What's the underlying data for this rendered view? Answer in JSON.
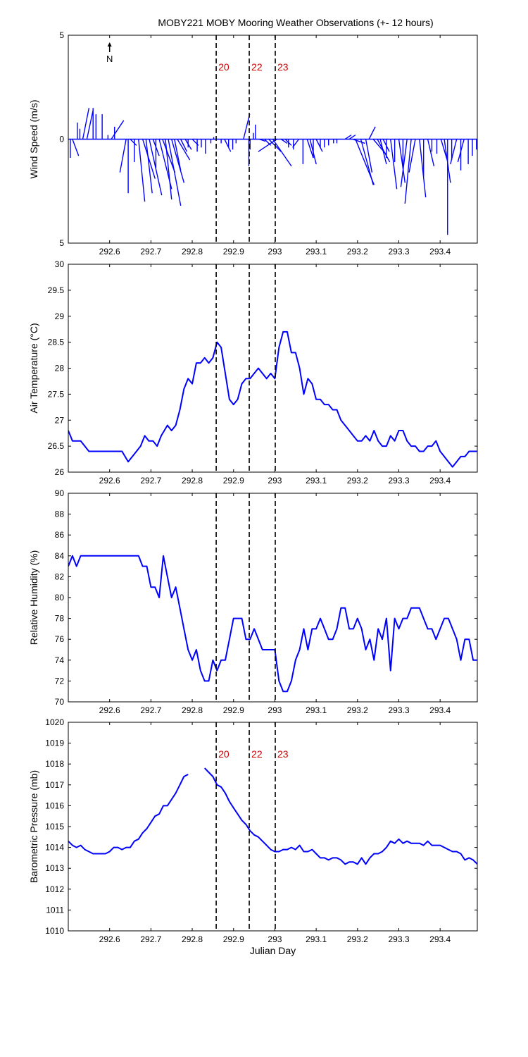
{
  "title": "MOBY221 MOBY Mooring Weather Observations (+- 12 hours)",
  "colors": {
    "series": "#0000ff",
    "marker_label": "#cc0000",
    "axes": "#000000"
  },
  "north_label": "N",
  "vlines": [
    {
      "x": 292.858,
      "label": "20"
    },
    {
      "x": 292.938,
      "label": "22"
    },
    {
      "x": 293.001,
      "label": "23"
    }
  ],
  "chart_data": [
    {
      "type": "line",
      "subtype": "wind-vector-stick",
      "xlabel": "Julian Day",
      "ylabel": "Wind Speed (m/s)",
      "xlim": [
        292.5,
        293.49
      ],
      "ylim": [
        -5,
        5
      ],
      "yticks": [
        5,
        0,
        5
      ],
      "xticks": [
        292.6,
        292.7,
        292.8,
        292.9,
        293,
        293.1,
        293.2,
        293.3,
        293.4
      ],
      "show_marker_labels": true,
      "sticks": [
        {
          "x": 292.505,
          "u": 0.0,
          "v": -0.9
        },
        {
          "x": 292.51,
          "u": 0.1,
          "v": -0.8
        },
        {
          "x": 292.522,
          "u": 0.0,
          "v": 0.8
        },
        {
          "x": 292.528,
          "u": 0.0,
          "v": 0.5
        },
        {
          "x": 292.535,
          "u": 0.1,
          "v": 1.5
        },
        {
          "x": 292.545,
          "u": 0.1,
          "v": 1.4
        },
        {
          "x": 292.56,
          "u": 0.0,
          "v": 1.5
        },
        {
          "x": 292.567,
          "u": 0.0,
          "v": 1.2
        },
        {
          "x": 292.582,
          "u": 0.0,
          "v": 1.2
        },
        {
          "x": 292.596,
          "u": 0.0,
          "v": 0.2
        },
        {
          "x": 292.604,
          "u": 0.2,
          "v": 0.9
        },
        {
          "x": 292.612,
          "u": 0.0,
          "v": 0.6
        },
        {
          "x": 292.64,
          "u": -0.1,
          "v": -1.6
        },
        {
          "x": 292.645,
          "u": 0.0,
          "v": -2.6
        },
        {
          "x": 292.65,
          "u": 0.1,
          "v": -0.3
        },
        {
          "x": 292.66,
          "u": 0.0,
          "v": -1.1
        },
        {
          "x": 292.67,
          "u": 0.1,
          "v": -3.0
        },
        {
          "x": 292.68,
          "u": 0.2,
          "v": -1.9
        },
        {
          "x": 292.688,
          "u": 0.1,
          "v": -2.6
        },
        {
          "x": 292.696,
          "u": 0.2,
          "v": -2.7
        },
        {
          "x": 292.705,
          "u": 0.1,
          "v": -0.8
        },
        {
          "x": 292.712,
          "u": 0.0,
          "v": -1.4
        },
        {
          "x": 292.72,
          "u": 0.2,
          "v": -2.4
        },
        {
          "x": 292.728,
          "u": 0.2,
          "v": -1.6
        },
        {
          "x": 292.735,
          "u": 0.1,
          "v": -2.9
        },
        {
          "x": 292.742,
          "u": 0.2,
          "v": -3.2
        },
        {
          "x": 292.75,
          "u": 0.2,
          "v": -2.1
        },
        {
          "x": 292.757,
          "u": 0.1,
          "v": -1.5
        },
        {
          "x": 292.764,
          "u": 0.2,
          "v": -1.0
        },
        {
          "x": 292.772,
          "u": 0.1,
          "v": -0.6
        },
        {
          "x": 292.783,
          "u": 0.1,
          "v": -0.5
        },
        {
          "x": 292.79,
          "u": 0.0,
          "v": -0.4
        },
        {
          "x": 292.8,
          "u": 0.1,
          "v": -0.3
        },
        {
          "x": 292.812,
          "u": 0.0,
          "v": -0.6
        },
        {
          "x": 292.822,
          "u": 0.0,
          "v": -0.4
        },
        {
          "x": 292.832,
          "u": 0.0,
          "v": -0.7
        },
        {
          "x": 292.845,
          "u": 0.0,
          "v": -0.2
        },
        {
          "x": 292.852,
          "u": 0.0,
          "v": 0.1
        },
        {
          "x": 292.87,
          "u": 0.0,
          "v": -0.2
        },
        {
          "x": 292.878,
          "u": 0.1,
          "v": -0.6
        },
        {
          "x": 292.888,
          "u": 0.0,
          "v": -0.4
        },
        {
          "x": 292.898,
          "u": 0.0,
          "v": -0.5
        },
        {
          "x": 292.906,
          "u": 0.0,
          "v": -0.2
        },
        {
          "x": 292.924,
          "u": 0.1,
          "v": 1.2
        },
        {
          "x": 292.937,
          "u": 0.0,
          "v": -1.3
        },
        {
          "x": 292.94,
          "u": 0.0,
          "v": -0.5
        },
        {
          "x": 292.948,
          "u": 0.0,
          "v": 0.3
        },
        {
          "x": 292.953,
          "u": 0.0,
          "v": 0.7
        },
        {
          "x": 292.962,
          "u": 0.1,
          "v": -0.1
        },
        {
          "x": 292.975,
          "u": 0.1,
          "v": -0.3
        },
        {
          "x": 292.985,
          "u": 0.2,
          "v": -0.6
        },
        {
          "x": 292.995,
          "u": 0.3,
          "v": -1.3
        },
        {
          "x": 293.005,
          "u": -0.3,
          "v": -0.6
        },
        {
          "x": 293.015,
          "u": 0.1,
          "v": -0.2
        },
        {
          "x": 293.025,
          "u": 0.1,
          "v": -0.3
        },
        {
          "x": 293.033,
          "u": 0.0,
          "v": -0.4
        },
        {
          "x": 293.045,
          "u": 0.0,
          "v": -0.5
        },
        {
          "x": 293.058,
          "u": -0.1,
          "v": -0.4
        },
        {
          "x": 293.068,
          "u": 0.0,
          "v": -1.2
        },
        {
          "x": 293.078,
          "u": 0.1,
          "v": -0.9
        },
        {
          "x": 293.085,
          "u": 0.1,
          "v": -1.2
        },
        {
          "x": 293.093,
          "u": 0.0,
          "v": -0.9
        },
        {
          "x": 293.1,
          "u": 0.1,
          "v": -0.6
        },
        {
          "x": 293.11,
          "u": 0.0,
          "v": -0.4
        },
        {
          "x": 293.12,
          "u": 0.0,
          "v": -0.4
        },
        {
          "x": 293.13,
          "u": 0.0,
          "v": -0.3
        },
        {
          "x": 293.142,
          "u": 0.0,
          "v": -0.2
        },
        {
          "x": 293.15,
          "u": 0.0,
          "v": -0.2
        },
        {
          "x": 293.17,
          "u": 0.1,
          "v": 0.2
        },
        {
          "x": 293.18,
          "u": 0.1,
          "v": 0.2
        },
        {
          "x": 293.188,
          "u": 0.2,
          "v": -0.2
        },
        {
          "x": 293.195,
          "u": 0.3,
          "v": -2.2
        },
        {
          "x": 293.208,
          "u": 0.2,
          "v": -2.2
        },
        {
          "x": 293.22,
          "u": 0.1,
          "v": -1.6
        },
        {
          "x": 293.228,
          "u": 0.1,
          "v": 0.6
        },
        {
          "x": 293.238,
          "u": 0.2,
          "v": -0.7
        },
        {
          "x": 293.248,
          "u": 0.2,
          "v": -1.1
        },
        {
          "x": 293.255,
          "u": 0.1,
          "v": -1.2
        },
        {
          "x": 293.262,
          "u": 0.1,
          "v": -0.6
        },
        {
          "x": 293.27,
          "u": 0.0,
          "v": -0.9
        },
        {
          "x": 293.28,
          "u": 0.1,
          "v": -2.4
        },
        {
          "x": 293.29,
          "u": 0.0,
          "v": -1.1
        },
        {
          "x": 293.3,
          "u": 0.1,
          "v": -2.1
        },
        {
          "x": 293.31,
          "u": 0.0,
          "v": -1.4
        },
        {
          "x": 293.32,
          "u": -0.1,
          "v": -2.3
        },
        {
          "x": 293.33,
          "u": -0.1,
          "v": -3.1
        },
        {
          "x": 293.34,
          "u": -0.1,
          "v": -1.6
        },
        {
          "x": 293.35,
          "u": 0.1,
          "v": -2.8
        },
        {
          "x": 293.36,
          "u": 0.0,
          "v": -1.8
        },
        {
          "x": 293.37,
          "u": 0.1,
          "v": -1.3
        },
        {
          "x": 293.38,
          "u": 0.0,
          "v": -0.6
        },
        {
          "x": 293.392,
          "u": 0.0,
          "v": -0.7
        },
        {
          "x": 293.402,
          "u": 0.1,
          "v": -1.0
        },
        {
          "x": 293.41,
          "u": 0.1,
          "v": -2.1
        },
        {
          "x": 293.418,
          "u": 0.0,
          "v": -4.6
        },
        {
          "x": 293.428,
          "u": 0.0,
          "v": -1.0
        },
        {
          "x": 293.44,
          "u": -0.1,
          "v": -1.2
        },
        {
          "x": 293.45,
          "u": 0.0,
          "v": -1.5
        },
        {
          "x": 293.458,
          "u": -0.1,
          "v": -1.1
        },
        {
          "x": 293.468,
          "u": 0.0,
          "v": -1.2
        },
        {
          "x": 293.478,
          "u": 0.0,
          "v": -0.8
        },
        {
          "x": 293.488,
          "u": 0.0,
          "v": -0.5
        }
      ]
    },
    {
      "type": "line",
      "xlabel": "",
      "ylabel": "Air Temperature (°C)",
      "xlim": [
        292.5,
        293.49
      ],
      "ylim": [
        26,
        30
      ],
      "yticks": [
        26,
        26.5,
        27,
        27.5,
        28,
        28.5,
        29,
        29.5,
        30
      ],
      "xticks": [
        292.6,
        292.7,
        292.8,
        292.9,
        293,
        293.1,
        293.2,
        293.3,
        293.4
      ],
      "show_marker_labels": false,
      "x": [
        292.5,
        292.51,
        292.52,
        292.53,
        292.55,
        292.6,
        292.63,
        292.645,
        292.66,
        292.675,
        292.685,
        292.695,
        292.705,
        292.715,
        292.725,
        292.74,
        292.75,
        292.76,
        292.77,
        292.78,
        292.79,
        292.8,
        292.81,
        292.82,
        292.83,
        292.84,
        292.85,
        292.86,
        292.87,
        292.88,
        292.89,
        292.9,
        292.91,
        292.92,
        292.93,
        292.94,
        292.95,
        292.96,
        292.97,
        292.98,
        292.99,
        293.0,
        293.01,
        293.02,
        293.03,
        293.04,
        293.05,
        293.06,
        293.07,
        293.08,
        293.09,
        293.1,
        293.11,
        293.12,
        293.13,
        293.14,
        293.15,
        293.16,
        293.17,
        293.18,
        293.19,
        293.2,
        293.21,
        293.22,
        293.23,
        293.24,
        293.25,
        293.26,
        293.27,
        293.28,
        293.29,
        293.3,
        293.31,
        293.32,
        293.33,
        293.34,
        293.35,
        293.36,
        293.37,
        293.38,
        293.39,
        293.4,
        293.41,
        293.42,
        293.43,
        293.44,
        293.45,
        293.46,
        293.47,
        293.48,
        293.49
      ],
      "y": [
        26.8,
        26.6,
        26.6,
        26.6,
        26.4,
        26.4,
        26.4,
        26.2,
        26.35,
        26.5,
        26.7,
        26.6,
        26.6,
        26.5,
        26.7,
        26.9,
        26.8,
        26.9,
        27.2,
        27.6,
        27.8,
        27.7,
        28.1,
        28.1,
        28.2,
        28.1,
        28.2,
        28.5,
        28.4,
        27.9,
        27.4,
        27.3,
        27.4,
        27.7,
        27.8,
        27.8,
        27.9,
        28.0,
        27.9,
        27.8,
        27.9,
        27.8,
        28.4,
        28.7,
        28.7,
        28.3,
        28.3,
        28.0,
        27.5,
        27.8,
        27.7,
        27.4,
        27.4,
        27.3,
        27.3,
        27.2,
        27.2,
        27.0,
        26.9,
        26.8,
        26.7,
        26.6,
        26.6,
        26.7,
        26.6,
        26.8,
        26.6,
        26.5,
        26.5,
        26.7,
        26.6,
        26.8,
        26.8,
        26.6,
        26.5,
        26.5,
        26.4,
        26.4,
        26.5,
        26.5,
        26.6,
        26.4,
        26.3,
        26.2,
        26.1,
        26.2,
        26.3,
        26.3,
        26.4,
        26.4,
        26.4
      ]
    },
    {
      "type": "line",
      "xlabel": "",
      "ylabel": "Relative Humidity (%)",
      "xlim": [
        292.5,
        293.49
      ],
      "ylim": [
        70,
        90
      ],
      "yticks": [
        70,
        72,
        74,
        76,
        78,
        80,
        82,
        84,
        86,
        88,
        90
      ],
      "xticks": [
        292.6,
        292.7,
        292.8,
        292.9,
        293,
        293.1,
        293.2,
        293.3,
        293.4
      ],
      "show_marker_labels": false,
      "x": [
        292.5,
        292.51,
        292.52,
        292.53,
        292.55,
        292.6,
        292.65,
        292.67,
        292.68,
        292.69,
        292.7,
        292.71,
        292.72,
        292.73,
        292.74,
        292.75,
        292.76,
        292.77,
        292.78,
        292.79,
        292.8,
        292.81,
        292.82,
        292.83,
        292.84,
        292.85,
        292.86,
        292.87,
        292.88,
        292.89,
        292.9,
        292.91,
        292.92,
        292.93,
        292.94,
        292.95,
        292.96,
        292.97,
        292.98,
        292.99,
        293.0,
        293.01,
        293.02,
        293.03,
        293.04,
        293.05,
        293.06,
        293.07,
        293.08,
        293.09,
        293.1,
        293.11,
        293.12,
        293.13,
        293.14,
        293.15,
        293.16,
        293.17,
        293.18,
        293.19,
        293.2,
        293.21,
        293.22,
        293.23,
        293.24,
        293.25,
        293.26,
        293.27,
        293.28,
        293.29,
        293.3,
        293.31,
        293.32,
        293.33,
        293.34,
        293.35,
        293.36,
        293.37,
        293.38,
        293.39,
        293.4,
        293.41,
        293.42,
        293.43,
        293.44,
        293.45,
        293.46,
        293.47,
        293.48,
        293.49
      ],
      "y": [
        83,
        84,
        83,
        84,
        84,
        84,
        84,
        84,
        83,
        83,
        81,
        81,
        80,
        84,
        82,
        80,
        81,
        79,
        77,
        75,
        74,
        75,
        73,
        72,
        72,
        74,
        73,
        74,
        74,
        76,
        78,
        78,
        78,
        76,
        76,
        77,
        76,
        75,
        75,
        75,
        75,
        72,
        71,
        71,
        72,
        74,
        75,
        77,
        75,
        77,
        77,
        78,
        77,
        76,
        76,
        77,
        79,
        79,
        77,
        77,
        78,
        77,
        75,
        76,
        74,
        77,
        76,
        78,
        73,
        78,
        77,
        78,
        78,
        79,
        79,
        79,
        78,
        77,
        77,
        76,
        77,
        78,
        78,
        77,
        76,
        74,
        76,
        76,
        74,
        74
      ]
    },
    {
      "type": "line",
      "xlabel": "Julian Day",
      "ylabel": "Barometric Pressure (mb)",
      "xlim": [
        292.5,
        293.49
      ],
      "ylim": [
        1010,
        1020
      ],
      "yticks": [
        1010,
        1011,
        1012,
        1013,
        1014,
        1015,
        1016,
        1017,
        1018,
        1019,
        1020
      ],
      "xticks": [
        292.6,
        292.7,
        292.8,
        292.9,
        293,
        293.1,
        293.2,
        293.3,
        293.4
      ],
      "show_marker_labels": true,
      "x": [
        292.5,
        292.51,
        292.52,
        292.53,
        292.54,
        292.55,
        292.56,
        292.57,
        292.58,
        292.59,
        292.6,
        292.61,
        292.62,
        292.63,
        292.64,
        292.65,
        292.66,
        292.67,
        292.68,
        292.69,
        292.7,
        292.71,
        292.72,
        292.73,
        292.74,
        292.75,
        292.76,
        292.77,
        292.78,
        292.79,
        292.8,
        292.81,
        null,
        292.83,
        292.84,
        292.85,
        292.86,
        292.87,
        292.88,
        292.89,
        292.9,
        292.91,
        292.92,
        292.93,
        292.94,
        292.95,
        292.96,
        292.97,
        292.98,
        292.99,
        293.0,
        293.01,
        293.02,
        293.03,
        293.04,
        293.05,
        293.06,
        293.07,
        293.08,
        293.09,
        293.1,
        293.11,
        293.12,
        293.13,
        293.14,
        293.15,
        293.16,
        293.17,
        293.18,
        293.19,
        293.2,
        293.21,
        293.22,
        293.23,
        293.24,
        293.25,
        293.26,
        293.27,
        293.28,
        293.29,
        293.3,
        293.31,
        293.32,
        293.33,
        293.34,
        293.35,
        293.36,
        293.37,
        293.38,
        293.39,
        293.4,
        293.41,
        293.42,
        293.43,
        293.44,
        293.45,
        293.46,
        293.47,
        293.48,
        293.49
      ],
      "y": [
        1014.3,
        1014.1,
        1014.0,
        1014.1,
        1013.9,
        1013.8,
        1013.7,
        1013.7,
        1013.7,
        1013.7,
        1013.8,
        1014.0,
        1014.0,
        1013.9,
        1014.0,
        1014.0,
        1014.3,
        1014.4,
        1014.7,
        1014.9,
        1015.2,
        1015.5,
        1015.6,
        1016.0,
        1016.0,
        1016.3,
        1016.6,
        1017.0,
        1017.4,
        1017.5,
        null,
        null,
        null,
        1017.8,
        1017.6,
        1017.4,
        1017.0,
        1016.9,
        1016.6,
        1016.2,
        1015.9,
        1015.6,
        1015.3,
        1015.1,
        1014.8,
        1014.6,
        1014.5,
        1014.3,
        1014.1,
        1013.9,
        1013.8,
        1013.8,
        1013.9,
        1013.9,
        1014.0,
        1013.9,
        1014.1,
        1013.8,
        1013.8,
        1013.9,
        1013.7,
        1013.5,
        1013.5,
        1013.4,
        1013.5,
        1013.5,
        1013.4,
        1013.2,
        1013.3,
        1013.3,
        1013.2,
        1013.5,
        1013.2,
        1013.5,
        1013.7,
        1013.7,
        1013.8,
        1014.0,
        1014.3,
        1014.2,
        1014.4,
        1014.2,
        1014.3,
        1014.2,
        1014.2,
        1014.2,
        1014.1,
        1014.3,
        1014.1,
        1014.1,
        1014.1,
        1014.0,
        1013.9,
        1013.8,
        1013.8,
        1013.7,
        1013.4,
        1013.5,
        1013.4,
        1013.2
      ]
    }
  ]
}
